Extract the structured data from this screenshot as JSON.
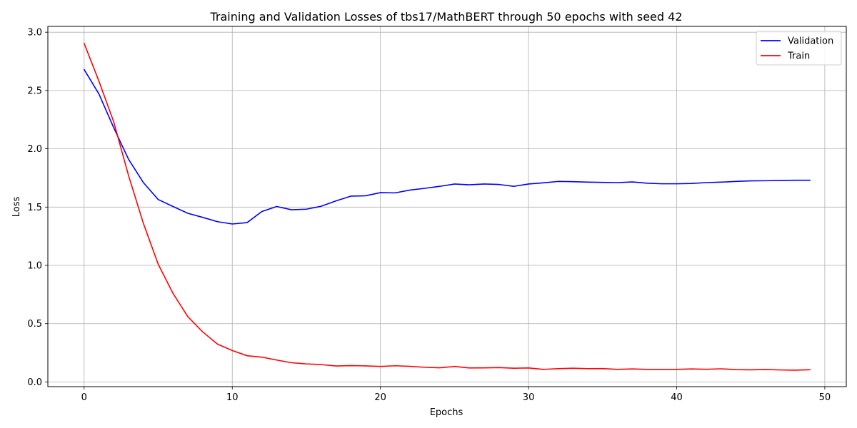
{
  "chart_data": {
    "type": "line",
    "title": "Training and Validation Losses of tbs17/MathBERT through 50 epochs with seed 42",
    "xlabel": "Epochs",
    "ylabel": "Loss",
    "xlim": [
      -2.45,
      51.45
    ],
    "ylim": [
      -0.04,
      3.05
    ],
    "xticks": [
      0,
      10,
      20,
      30,
      40,
      50
    ],
    "yticks": [
      0.0,
      0.5,
      1.0,
      1.5,
      2.0,
      2.5,
      3.0
    ],
    "xtick_labels": [
      "0",
      "10",
      "20",
      "30",
      "40",
      "50"
    ],
    "ytick_labels": [
      "0.0",
      "0.5",
      "1.0",
      "1.5",
      "2.0",
      "2.5",
      "3.0"
    ],
    "grid": true,
    "legend_position": "top-right",
    "x": [
      0,
      1,
      2,
      3,
      4,
      5,
      6,
      7,
      8,
      9,
      10,
      11,
      12,
      13,
      14,
      15,
      16,
      17,
      18,
      19,
      20,
      21,
      22,
      23,
      24,
      25,
      26,
      27,
      28,
      29,
      30,
      31,
      32,
      33,
      34,
      35,
      36,
      37,
      38,
      39,
      40,
      41,
      42,
      43,
      44,
      45,
      46,
      47,
      48,
      49
    ],
    "series": [
      {
        "name": "Validation",
        "color": "#0000ff",
        "values": [
          2.68,
          2.47,
          2.18,
          1.91,
          1.71,
          1.565,
          1.505,
          1.447,
          1.412,
          1.375,
          1.355,
          1.367,
          1.462,
          1.505,
          1.477,
          1.482,
          1.507,
          1.553,
          1.594,
          1.597,
          1.624,
          1.622,
          1.646,
          1.661,
          1.678,
          1.698,
          1.691,
          1.698,
          1.694,
          1.678,
          1.698,
          1.708,
          1.72,
          1.718,
          1.714,
          1.712,
          1.71,
          1.716,
          1.705,
          1.7,
          1.7,
          1.703,
          1.71,
          1.714,
          1.72,
          1.725,
          1.726,
          1.729,
          1.73,
          1.73
        ]
      },
      {
        "name": "Train",
        "color": "#ff0000",
        "values": [
          2.905,
          2.58,
          2.23,
          1.77,
          1.36,
          1.01,
          0.76,
          0.56,
          0.43,
          0.325,
          0.27,
          0.225,
          0.213,
          0.188,
          0.165,
          0.155,
          0.149,
          0.137,
          0.14,
          0.138,
          0.133,
          0.139,
          0.134,
          0.126,
          0.122,
          0.133,
          0.12,
          0.121,
          0.123,
          0.118,
          0.12,
          0.108,
          0.114,
          0.118,
          0.114,
          0.115,
          0.108,
          0.112,
          0.108,
          0.108,
          0.108,
          0.112,
          0.109,
          0.113,
          0.106,
          0.104,
          0.107,
          0.103,
          0.101,
          0.105
        ]
      }
    ]
  }
}
